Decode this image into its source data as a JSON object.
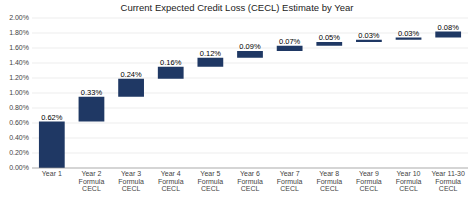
{
  "chart_data": {
    "type": "waterfall",
    "title": "Current Expected Credit Loss (CECL) Estimate by Year",
    "categories": [
      "Year 1",
      "Year 2\nFormula\nCECL",
      "Year 3\nFormula\nCECL",
      "Year 4\nFormula\nCECL",
      "Year 5\nFormula\nCECL",
      "Year 6\nFormula\nCECL",
      "Year 7\nFormula\nCECL",
      "Year 8\nFormula\nCECL",
      "Year 9\nFormula\nCECL",
      "Year 10\nFormula\nCECL",
      "Year 11-30\nFormula\nCECL"
    ],
    "values": [
      0.0062,
      0.0033,
      0.0024,
      0.0016,
      0.0012,
      0.0009,
      0.0007,
      0.0005,
      0.0003,
      0.0003,
      0.0008
    ],
    "value_labels": [
      "0.62%",
      "0.33%",
      "0.24%",
      "0.16%",
      "0.12%",
      "0.09%",
      "0.07%",
      "0.05%",
      "0.03%",
      "0.03%",
      "0.08%"
    ],
    "data_labels": true,
    "color": "#1F3864",
    "ylim": [
      0.0,
      0.02
    ],
    "yticks": [
      {
        "value": 0.0,
        "label": "0.00%"
      },
      {
        "value": 0.002,
        "label": "0.20%"
      },
      {
        "value": 0.004,
        "label": "0.40%"
      },
      {
        "value": 0.006,
        "label": "0.60%"
      },
      {
        "value": 0.008,
        "label": "0.80%"
      },
      {
        "value": 0.01,
        "label": "1.00%"
      },
      {
        "value": 0.012,
        "label": "1.20%"
      },
      {
        "value": 0.014,
        "label": "1.40%"
      },
      {
        "value": 0.016,
        "label": "1.60%"
      },
      {
        "value": 0.018,
        "label": "1.80%"
      },
      {
        "value": 0.02,
        "label": "2.00%"
      }
    ],
    "grid": true
  }
}
